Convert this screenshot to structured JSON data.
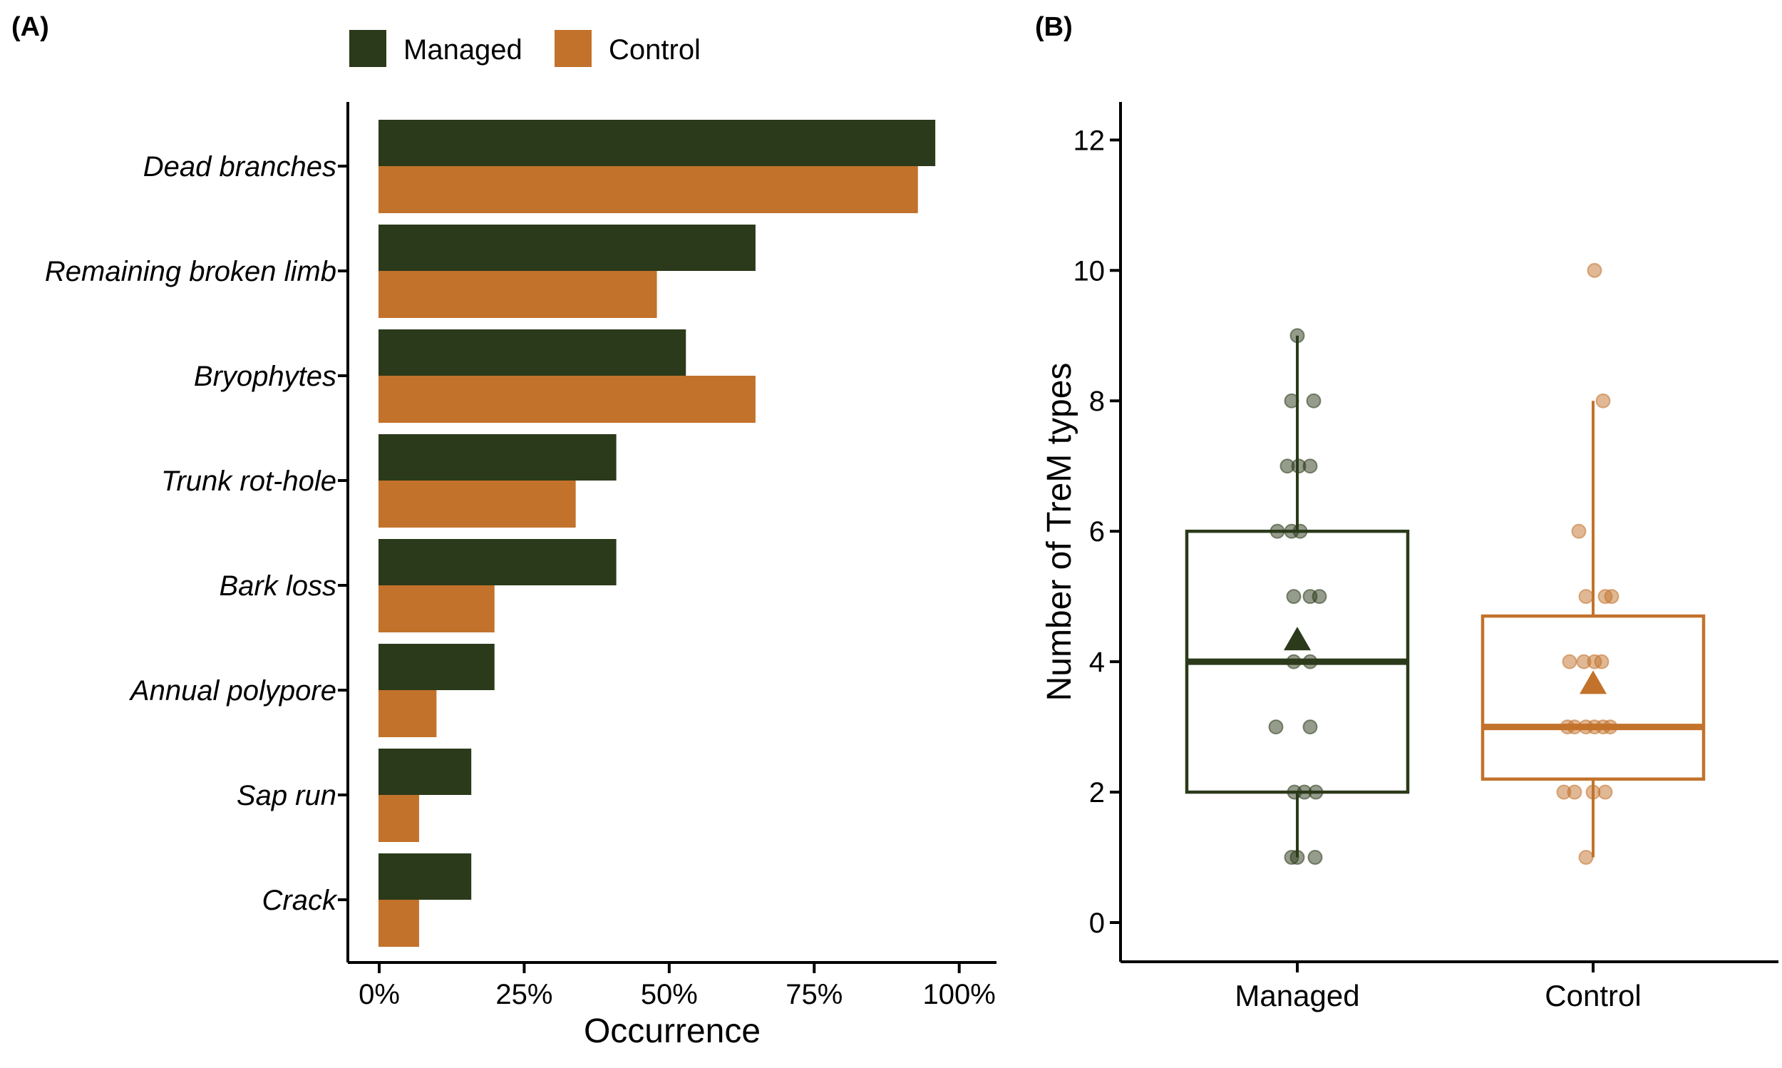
{
  "panels": {
    "a": "(A)",
    "b": "(B)"
  },
  "chart_data": [
    {
      "type": "bar",
      "orientation": "horizontal",
      "xlabel": "Occurrence",
      "x_tick_labels": [
        "0%",
        "25%",
        "50%",
        "75%",
        "100%"
      ],
      "x_tick_values": [
        0,
        25,
        50,
        75,
        100
      ],
      "xlim": [
        0,
        100
      ],
      "categories": [
        "Dead branches",
        "Remaining broken limb",
        "Bryophytes",
        "Trunk rot-hole",
        "Bark loss",
        "Annual polypore",
        "Sap run",
        "Crack"
      ],
      "legend": [
        "Managed",
        "Control"
      ],
      "legend_position": "top",
      "colors": {
        "managed": "#2b3a1a",
        "control": "#c2722b"
      },
      "series": [
        {
          "name": "Managed",
          "values": [
            96,
            65,
            53,
            41,
            41,
            20,
            16,
            16
          ]
        },
        {
          "name": "Control",
          "values": [
            93,
            48,
            65,
            34,
            20,
            10,
            7,
            7
          ]
        }
      ]
    },
    {
      "type": "boxplot",
      "ylabel": "Number of TreM types",
      "y_ticks": [
        0,
        2,
        4,
        6,
        8,
        10,
        12
      ],
      "ylim": [
        0,
        12
      ],
      "point_opacity": 0.5,
      "groups": [
        {
          "name": "Managed",
          "color": "#2b3a1a",
          "q1": 2,
          "median": 4,
          "q3": 6,
          "whisker_low": 1,
          "whisker_high": 9,
          "mean": 4.35,
          "points": [
            [
              9,
              0
            ],
            [
              8,
              -8
            ],
            [
              8,
              23
            ],
            [
              7,
              -14
            ],
            [
              7,
              2
            ],
            [
              7,
              18
            ],
            [
              6,
              -28
            ],
            [
              6,
              -8
            ],
            [
              6,
              4
            ],
            [
              5,
              -5
            ],
            [
              5,
              18
            ],
            [
              5,
              31
            ],
            [
              4,
              -5
            ],
            [
              4,
              18
            ],
            [
              3,
              -30
            ],
            [
              3,
              18
            ],
            [
              2,
              -4
            ],
            [
              2,
              10
            ],
            [
              2,
              26
            ],
            [
              1,
              -8
            ],
            [
              1,
              0
            ],
            [
              1,
              25
            ]
          ]
        },
        {
          "name": "Control",
          "color": "#c2722b",
          "q1": 2.2,
          "median": 3,
          "q3": 4.7,
          "whisker_low": 1,
          "whisker_high": 8,
          "mean": 3.68,
          "points": [
            [
              10,
              2
            ],
            [
              8,
              14
            ],
            [
              6,
              -20
            ],
            [
              5,
              -10
            ],
            [
              5,
              17
            ],
            [
              5,
              26
            ],
            [
              4,
              -33
            ],
            [
              4,
              -13
            ],
            [
              4,
              2
            ],
            [
              4,
              12
            ],
            [
              3,
              -36
            ],
            [
              3,
              -26
            ],
            [
              3,
              -10
            ],
            [
              3,
              2
            ],
            [
              3,
              14
            ],
            [
              3,
              24
            ],
            [
              2,
              -41
            ],
            [
              2,
              -26
            ],
            [
              2,
              0
            ],
            [
              2,
              17
            ],
            [
              1,
              -10
            ]
          ]
        }
      ]
    }
  ]
}
